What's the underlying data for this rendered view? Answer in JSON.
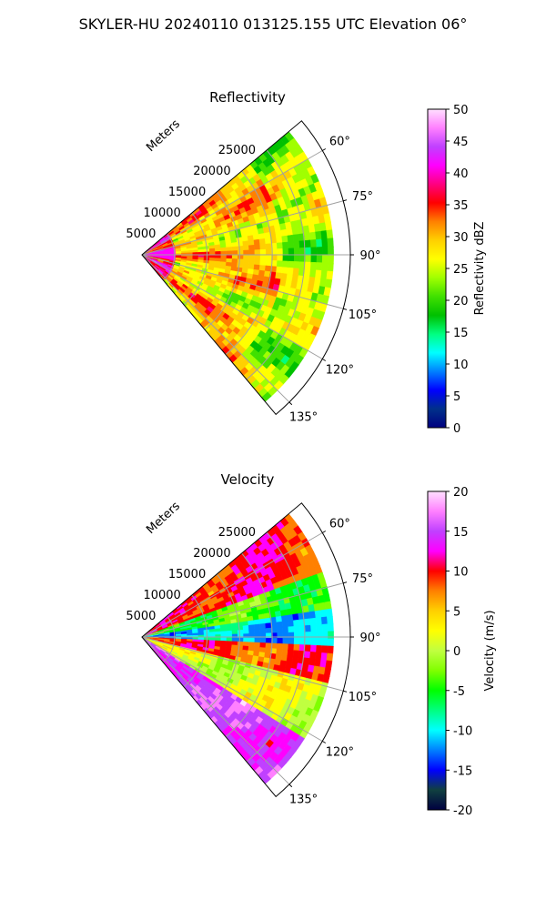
{
  "title": "SKYLER-HU  20240110  013125.155 UTC Elevation 06°",
  "chart_data": [
    {
      "type": "heatmap",
      "subtype": "polar-sector (PPI)",
      "title": "Reflectivity",
      "radial_label": "Meters",
      "radial_ticks": [
        "5000",
        "10000",
        "15000",
        "20000",
        "25000"
      ],
      "radial_max_m": 32000,
      "angle_ticks": [
        "60°",
        "75°",
        "90°",
        "105°",
        "120°",
        "135°"
      ],
      "angle_range_deg": [
        50,
        140
      ],
      "colorbar": {
        "label": "Reflectivity dBZ",
        "min": 0,
        "max": 50,
        "ticks": [
          "0",
          "5",
          "10",
          "15",
          "20",
          "25",
          "30",
          "35",
          "40",
          "45",
          "50"
        ]
      },
      "field_description_bands": [
        {
          "from_range_m": 0,
          "to_range_m": 6000,
          "dominant_dbz": 38
        },
        {
          "from_range_m": 6000,
          "to_range_m": 24000,
          "dominant_dbz": 29
        },
        {
          "from_range_m": 24000,
          "to_range_m": 32000,
          "dominant_dbz": 24
        }
      ]
    },
    {
      "type": "heatmap",
      "subtype": "polar-sector (PPI)",
      "title": "Velocity",
      "radial_label": "Meters",
      "radial_ticks": [
        "5000",
        "10000",
        "15000",
        "20000",
        "25000"
      ],
      "radial_max_m": 32000,
      "angle_ticks": [
        "60°",
        "75°",
        "90°",
        "105°",
        "120°",
        "135°"
      ],
      "angle_range_deg": [
        50,
        140
      ],
      "colorbar": {
        "label": "Velocity (m/s)",
        "min": -20,
        "max": 20,
        "ticks": [
          "-20",
          "-15",
          "-10",
          "-5",
          "0",
          "5",
          "10",
          "15",
          "20"
        ]
      },
      "field_description_bands": [
        {
          "from_angle_deg": 50,
          "to_angle_deg": 70,
          "dominant_ms": 10
        },
        {
          "from_angle_deg": 70,
          "to_angle_deg": 82,
          "dominant_ms": -4
        },
        {
          "from_angle_deg": 82,
          "to_angle_deg": 92,
          "dominant_ms": -11
        },
        {
          "from_angle_deg": 92,
          "to_angle_deg": 105,
          "dominant_ms": 9
        },
        {
          "from_angle_deg": 105,
          "to_angle_deg": 122,
          "dominant_ms": 1
        },
        {
          "from_angle_deg": 122,
          "to_angle_deg": 140,
          "dominant_ms": 15
        }
      ]
    }
  ],
  "colors": {
    "dbz_scale": [
      "#000080",
      "#00308a",
      "#0000ff",
      "#0080ff",
      "#00ffff",
      "#00ff80",
      "#00c000",
      "#40e000",
      "#a0ff00",
      "#ffff00",
      "#ffd000",
      "#ff8000",
      "#ff0000",
      "#ff0080",
      "#ff00ff",
      "#c040ff",
      "#ff80ff",
      "#ffe0ff"
    ],
    "vel_scale": [
      "#000040",
      "#104040",
      "#0000ff",
      "#0080ff",
      "#00ffff",
      "#00ff80",
      "#00ff00",
      "#80ff00",
      "#c0ff40",
      "#ffff00",
      "#ffd000",
      "#ff8000",
      "#ff0000",
      "#ff00ff",
      "#c040ff",
      "#ff80ff",
      "#ffe0ff"
    ],
    "grid": "#a0a0a0"
  }
}
